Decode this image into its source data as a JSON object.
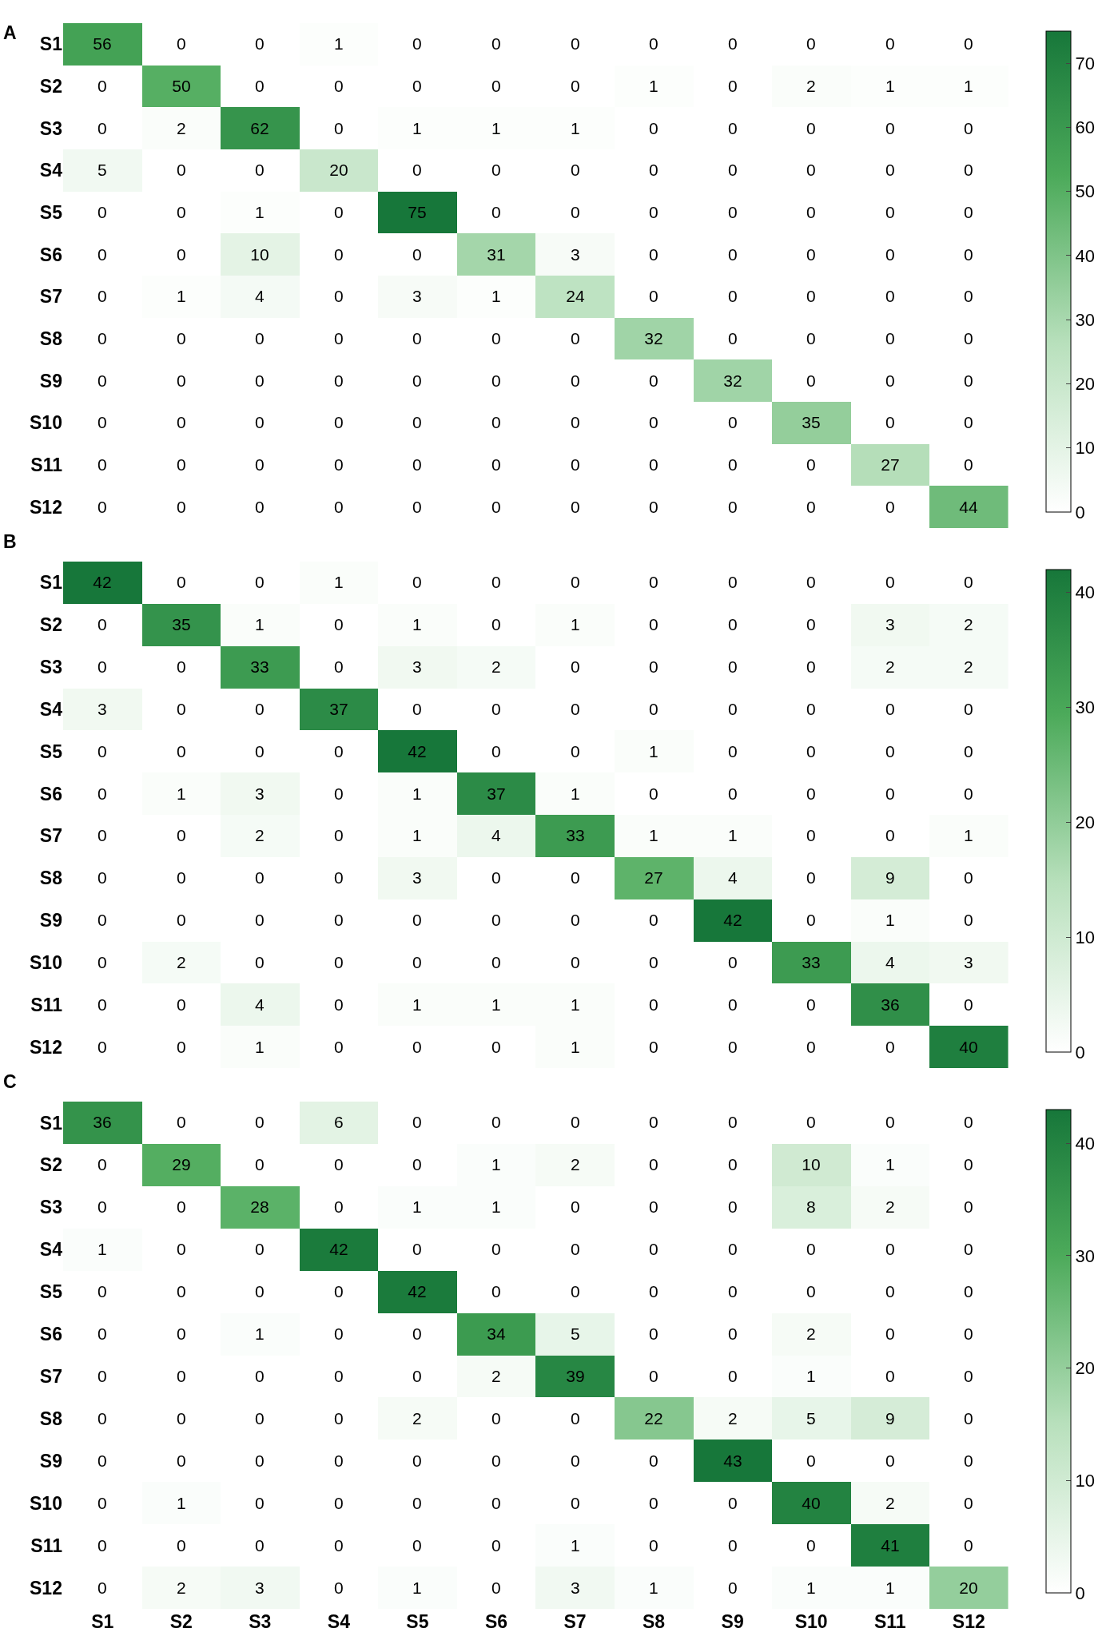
{
  "chart_data": [
    {
      "type": "heatmap",
      "title": "A",
      "tick_labels": "y",
      "data_labels": true,
      "clim": [
        0,
        75
      ],
      "cticks": [
        0,
        10,
        20,
        30,
        40,
        50,
        60,
        70
      ],
      "categories": [
        null,
        null,
        null,
        null,
        null,
        null,
        null,
        null,
        null,
        null,
        null,
        null
      ],
      "y_categories": [
        "S1",
        "S2",
        "S3",
        "S4",
        "S5",
        "S6",
        "S7",
        "S8",
        "S9",
        "S10",
        "S11",
        "S12"
      ],
      "cells": [
        [
          56,
          0,
          0,
          1,
          0,
          0,
          0,
          0,
          0,
          0,
          0,
          0
        ],
        [
          0,
          50,
          0,
          0,
          0,
          0,
          0,
          1,
          0,
          2,
          1,
          1
        ],
        [
          0,
          2,
          62,
          0,
          1,
          1,
          1,
          0,
          0,
          0,
          0,
          0
        ],
        [
          5,
          0,
          0,
          20,
          0,
          0,
          0,
          0,
          0,
          0,
          0,
          0
        ],
        [
          0,
          0,
          1,
          0,
          75,
          0,
          0,
          0,
          0,
          0,
          0,
          0
        ],
        [
          0,
          0,
          10,
          0,
          0,
          31,
          3,
          0,
          0,
          0,
          0,
          0
        ],
        [
          0,
          1,
          4,
          0,
          3,
          1,
          24,
          0,
          0,
          0,
          0,
          0
        ],
        [
          0,
          0,
          0,
          0,
          0,
          0,
          0,
          32,
          0,
          0,
          0,
          0
        ],
        [
          0,
          0,
          0,
          0,
          0,
          0,
          0,
          0,
          32,
          0,
          0,
          0
        ],
        [
          0,
          0,
          0,
          0,
          0,
          0,
          0,
          0,
          0,
          35,
          0,
          0
        ],
        [
          0,
          0,
          0,
          0,
          0,
          0,
          0,
          0,
          0,
          0,
          27,
          0
        ],
        [
          0,
          0,
          0,
          0,
          0,
          0,
          0,
          0,
          0,
          0,
          0,
          44
        ]
      ]
    },
    {
      "type": "heatmap",
      "title": "B",
      "tick_labels": "y",
      "data_labels": true,
      "clim": [
        0,
        42
      ],
      "cticks": [
        0,
        10,
        20,
        30,
        40
      ],
      "categories": [
        null,
        null,
        null,
        null,
        null,
        null,
        null,
        null,
        null,
        null,
        null,
        null
      ],
      "y_categories": [
        "S1",
        "S2",
        "S3",
        "S4",
        "S5",
        "S6",
        "S7",
        "S8",
        "S9",
        "S10",
        "S11",
        "S12"
      ],
      "cells": [
        [
          42,
          0,
          0,
          1,
          0,
          0,
          0,
          0,
          0,
          0,
          0,
          0
        ],
        [
          0,
          35,
          1,
          0,
          1,
          0,
          1,
          0,
          0,
          0,
          3,
          2
        ],
        [
          0,
          0,
          33,
          0,
          3,
          2,
          0,
          0,
          0,
          0,
          2,
          2
        ],
        [
          3,
          0,
          0,
          37,
          0,
          0,
          0,
          0,
          0,
          0,
          0,
          0
        ],
        [
          0,
          0,
          0,
          0,
          42,
          0,
          0,
          1,
          0,
          0,
          0,
          0
        ],
        [
          0,
          1,
          3,
          0,
          1,
          37,
          1,
          0,
          0,
          0,
          0,
          0
        ],
        [
          0,
          0,
          2,
          0,
          1,
          4,
          33,
          1,
          1,
          0,
          0,
          1
        ],
        [
          0,
          0,
          0,
          0,
          3,
          0,
          0,
          27,
          4,
          0,
          9,
          0
        ],
        [
          0,
          0,
          0,
          0,
          0,
          0,
          0,
          0,
          42,
          0,
          1,
          0
        ],
        [
          0,
          2,
          0,
          0,
          0,
          0,
          0,
          0,
          0,
          33,
          4,
          3
        ],
        [
          0,
          0,
          4,
          0,
          1,
          1,
          1,
          0,
          0,
          0,
          36,
          0
        ],
        [
          0,
          0,
          1,
          0,
          0,
          0,
          1,
          0,
          0,
          0,
          0,
          40
        ]
      ]
    },
    {
      "type": "heatmap",
      "title": "C",
      "data_labels": true,
      "clim": [
        0,
        43
      ],
      "cticks": [
        0,
        10,
        20,
        30,
        40
      ],
      "categories": [
        "S1",
        "S2",
        "S3",
        "S4",
        "S5",
        "S6",
        "S7",
        "S8",
        "S9",
        "S10",
        "S11",
        "S12"
      ],
      "y_categories": [
        "S1",
        "S2",
        "S3",
        "S4",
        "S5",
        "S6",
        "S7",
        "S8",
        "S9",
        "S10",
        "S11",
        "S12"
      ],
      "cells": [
        [
          36,
          0,
          0,
          6,
          0,
          0,
          0,
          0,
          0,
          0,
          0,
          0
        ],
        [
          0,
          29,
          0,
          0,
          0,
          1,
          2,
          0,
          0,
          10,
          1,
          0
        ],
        [
          0,
          0,
          28,
          0,
          1,
          1,
          0,
          0,
          0,
          8,
          2,
          0
        ],
        [
          1,
          0,
          0,
          42,
          0,
          0,
          0,
          0,
          0,
          0,
          0,
          0
        ],
        [
          0,
          0,
          0,
          0,
          42,
          0,
          0,
          0,
          0,
          0,
          0,
          0
        ],
        [
          0,
          0,
          1,
          0,
          0,
          34,
          5,
          0,
          0,
          2,
          0,
          0
        ],
        [
          0,
          0,
          0,
          0,
          0,
          2,
          39,
          0,
          0,
          1,
          0,
          0
        ],
        [
          0,
          0,
          0,
          0,
          2,
          0,
          0,
          22,
          2,
          5,
          9,
          0
        ],
        [
          0,
          0,
          0,
          0,
          0,
          0,
          0,
          0,
          43,
          0,
          0,
          0
        ],
        [
          0,
          1,
          0,
          0,
          0,
          0,
          0,
          0,
          0,
          40,
          2,
          0
        ],
        [
          0,
          0,
          0,
          0,
          0,
          0,
          1,
          0,
          0,
          0,
          41,
          0
        ],
        [
          0,
          2,
          3,
          0,
          1,
          0,
          3,
          1,
          0,
          1,
          1,
          20
        ]
      ]
    }
  ]
}
